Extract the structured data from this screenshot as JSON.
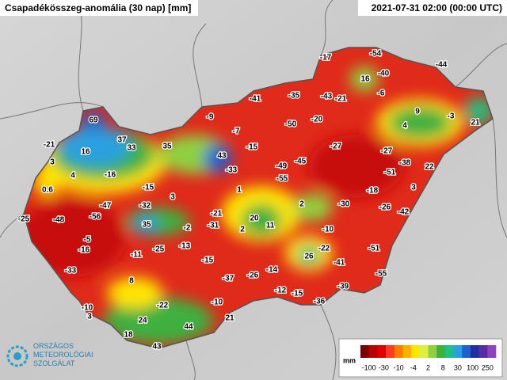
{
  "header": {
    "title": "Csapadékösszeg-anomália (30 nap) [mm]",
    "timestamp": "2021-07-31 02:00 (00:00 UTC)"
  },
  "map": {
    "stations": [
      -17,
      -54,
      -44,
      16,
      -40,
      -6,
      -41,
      -35,
      -43,
      -21,
      9,
      -3,
      21,
      -9,
      -50,
      -20,
      4,
      69,
      -7,
      -21,
      37,
      33,
      35,
      -15,
      -27,
      -27,
      16,
      43,
      -45,
      -38,
      3,
      -49,
      -51,
      22,
      4,
      -16,
      -33,
      -55,
      0.6,
      -15,
      1,
      -18,
      3,
      3,
      -47,
      -32,
      2,
      -30,
      -26,
      -42,
      -25,
      -48,
      -56,
      -21,
      20,
      11,
      35,
      -2,
      -31,
      2,
      -10,
      -5,
      -16,
      -25,
      -13,
      -22,
      -51,
      -11,
      26,
      -15,
      -41,
      -33,
      -14,
      -37,
      -26,
      -55,
      8,
      -39,
      -12,
      -15,
      -10,
      -22,
      -10,
      -36,
      3,
      24,
      21,
      44,
      18,
      43
    ]
  },
  "legend": {
    "unit": "mm",
    "ticks": [
      -100,
      -30,
      -10,
      -4,
      2,
      8,
      30,
      100,
      250
    ],
    "colors": [
      "#7a0000",
      "#b80000",
      "#e00000",
      "#ff3a20",
      "#ff7a00",
      "#ffb000",
      "#ffe600",
      "#d8f040",
      "#90d040",
      "#3cb040",
      "#20c080",
      "#2aa0e0",
      "#2060d0",
      "#2030a0",
      "#5a2aa0",
      "#9040c0"
    ]
  },
  "logo": {
    "lines": [
      "ORSZÁGOS",
      "METEOROLÓGIAI",
      "SZOLGÁLAT"
    ]
  }
}
